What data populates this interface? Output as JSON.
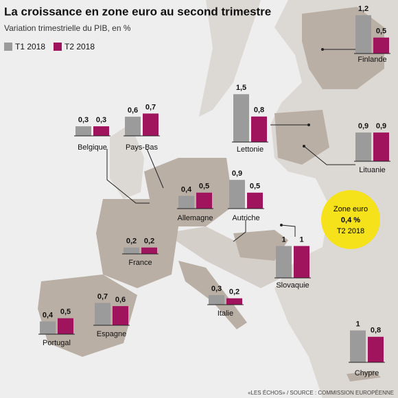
{
  "header": {
    "title": "La croissance en zone euro au second trimestre",
    "subtitle": "Variation trimestrielle du PIB, en %"
  },
  "legend": [
    {
      "label": "T1 2018",
      "color": "#9b9b9b"
    },
    {
      "label": "T2 2018",
      "color": "#a0135d"
    }
  ],
  "countries": [
    {
      "name": "Finlande",
      "values": [
        1.2,
        0.5
      ],
      "value_labels": [
        "1,2",
        "0,5"
      ]
    },
    {
      "name": "Belgique",
      "values": [
        0.3,
        0.3
      ],
      "value_labels": [
        "0,3",
        "0,3"
      ]
    },
    {
      "name": "Pays-Bas",
      "values": [
        0.6,
        0.7
      ],
      "value_labels": [
        "0,6",
        "0,7"
      ]
    },
    {
      "name": "Lettonie",
      "values": [
        1.5,
        0.8
      ],
      "value_labels": [
        "1,5",
        "0,8"
      ]
    },
    {
      "name": "Lituanie",
      "values": [
        0.9,
        0.9
      ],
      "value_labels": [
        "0,9",
        "0,9"
      ]
    },
    {
      "name": "Allemagne",
      "values": [
        0.4,
        0.5
      ],
      "value_labels": [
        "0,4",
        "0,5"
      ]
    },
    {
      "name": "Autriche",
      "values": [
        0.9,
        0.5
      ],
      "value_labels": [
        "0,9",
        "0,5"
      ]
    },
    {
      "name": "France",
      "values": [
        0.2,
        0.2
      ],
      "value_labels": [
        "0,2",
        "0,2"
      ]
    },
    {
      "name": "Slovaquie",
      "values": [
        1,
        1
      ],
      "value_labels": [
        "1",
        "1"
      ]
    },
    {
      "name": "Portugal",
      "values": [
        0.4,
        0.5
      ],
      "value_labels": [
        "0,4",
        "0,5"
      ]
    },
    {
      "name": "Espagne",
      "values": [
        0.7,
        0.6
      ],
      "value_labels": [
        "0,7",
        "0,6"
      ]
    },
    {
      "name": "Italie",
      "values": [
        0.3,
        0.2
      ],
      "value_labels": [
        "0,3",
        "0,2"
      ]
    },
    {
      "name": "Chypre",
      "values": [
        1,
        0.8
      ],
      "value_labels": [
        "1",
        "0,8"
      ]
    }
  ],
  "callout": {
    "title": "Zone euro",
    "value": "0,4 %",
    "period": "T2 2018"
  },
  "source": "«LES ÉCHOS» / SOURCE : COMMISSION EUROPÉENNE"
}
